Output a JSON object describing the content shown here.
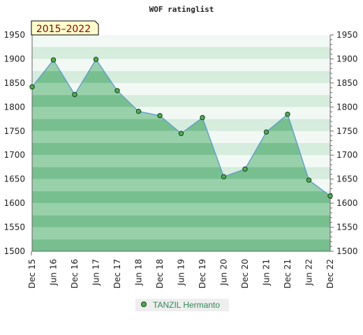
{
  "chart_data": {
    "type": "area",
    "title": "WOF ratinglist",
    "period_badge": "2015–2022",
    "x": [
      "Dec 15",
      "Jun 16",
      "Dec 16",
      "Jun 17",
      "Dec 17",
      "Jun 18",
      "Dec 18",
      "Jun 19",
      "Dec 19",
      "Jun 20",
      "Dec 20",
      "Jun 21",
      "Dec 21",
      "Jun 22",
      "Dec 22"
    ],
    "series": [
      {
        "name": "TANZIL Hermanto",
        "values": [
          1842,
          1898,
          1826,
          1899,
          1834,
          1791,
          1782,
          1745,
          1778,
          1655,
          1671,
          1748,
          1785,
          1648,
          1615
        ]
      }
    ],
    "ylim": [
      1500,
      1950
    ],
    "yticks": [
      1500,
      1550,
      1600,
      1650,
      1700,
      1750,
      1800,
      1850,
      1900,
      1950
    ],
    "xlabel": "",
    "ylabel": "",
    "grid": true,
    "legend_position": "bottom",
    "colors": {
      "line": "#5b9bd5",
      "marker_fill": "#4caf50",
      "marker_stroke": "#1a3a1a",
      "area_dark": "#77bf8f",
      "area_light": "#97d0a9",
      "bg_band_dark": "#d6ecdd",
      "bg_band_light": "#f2f9f4",
      "badge_bg": "#ffffcc",
      "legend_text": "#2e8b57"
    }
  }
}
